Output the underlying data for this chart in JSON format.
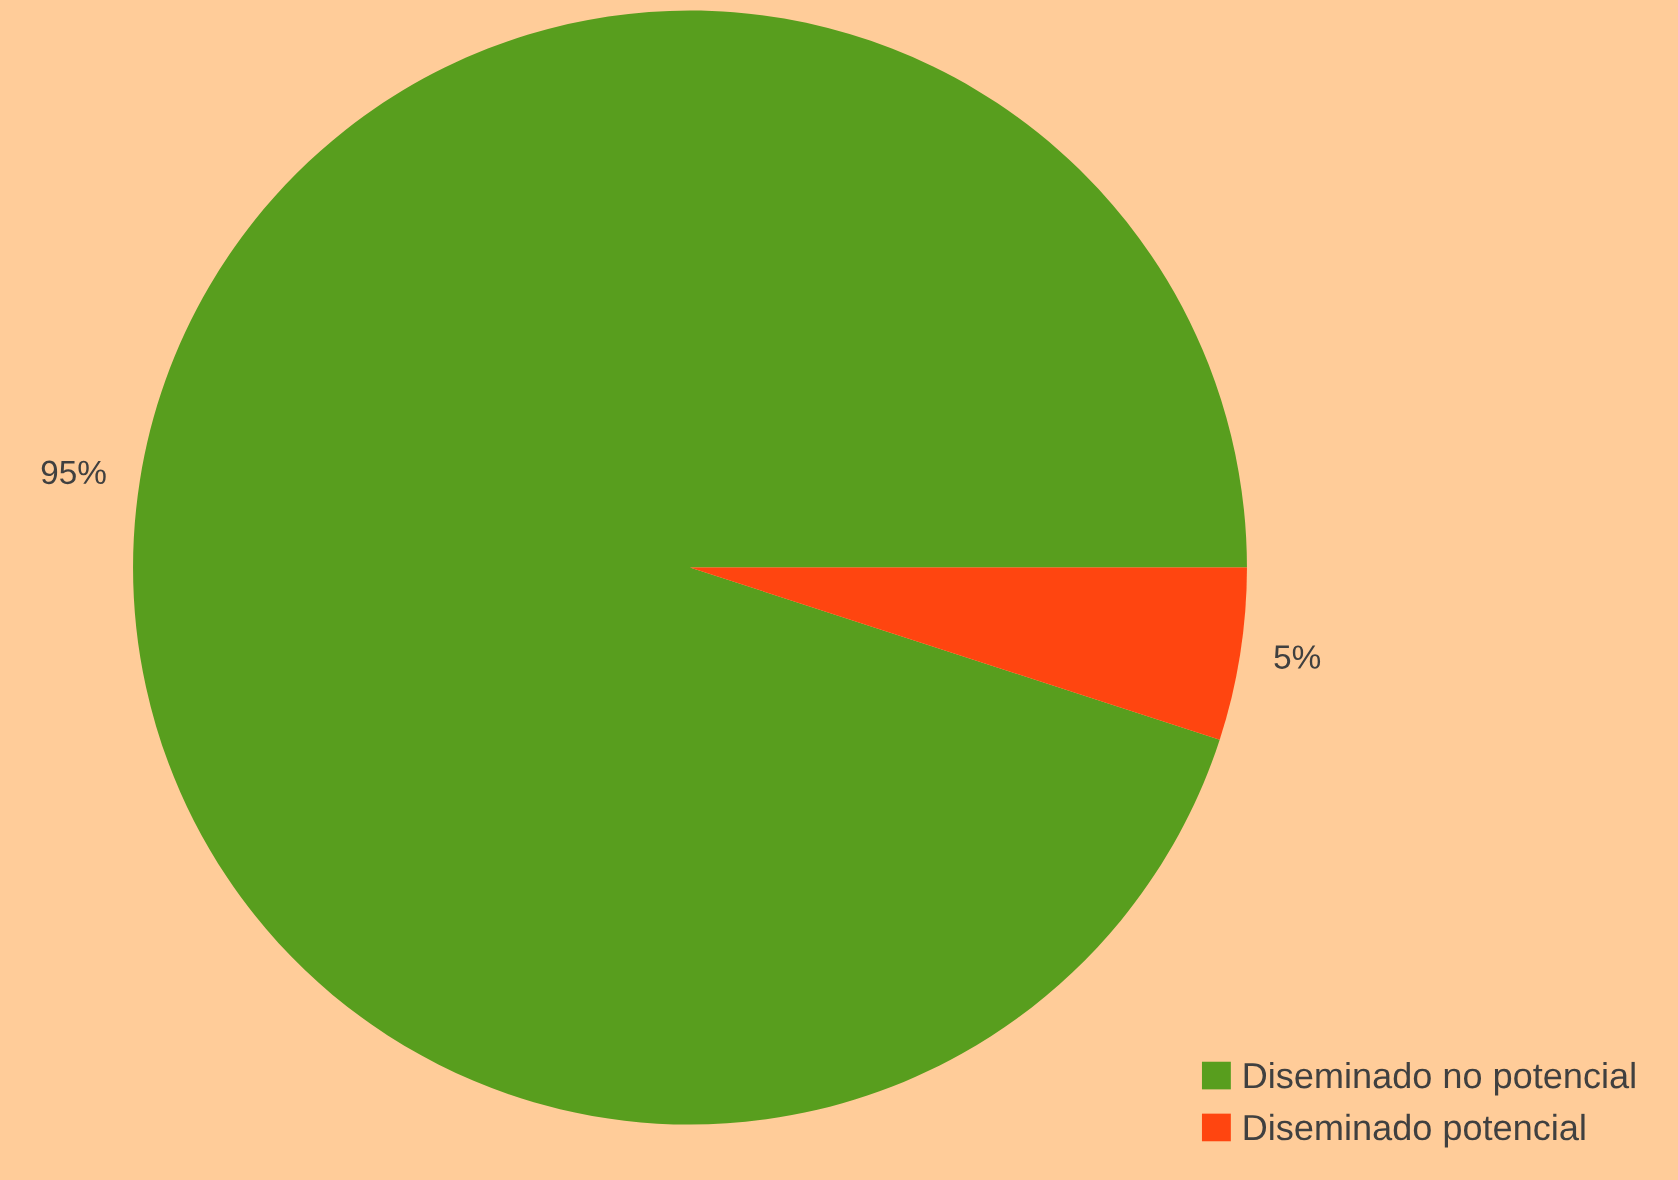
{
  "chart_data": {
    "type": "pie",
    "categories": [
      "Diseminado no potencial",
      "Diseminado potencial"
    ],
    "values": [
      95,
      5
    ],
    "colors": [
      "#589e1e",
      "#ff4510"
    ],
    "value_labels": [
      "95%",
      "5%"
    ],
    "legend": "bottom right"
  }
}
